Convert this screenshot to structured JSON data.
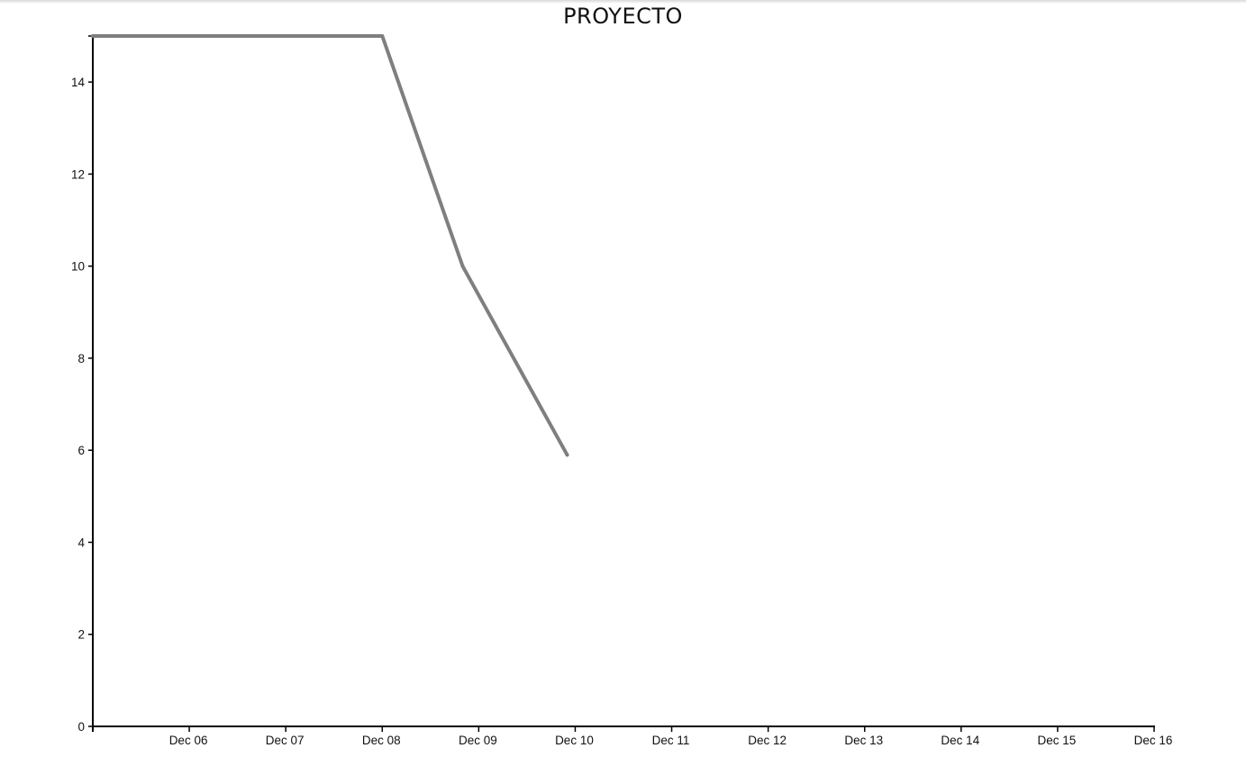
{
  "chart_data": {
    "type": "line",
    "title": "PROYECTO",
    "xlabel": "",
    "ylabel": "",
    "x_tick_labels": [
      "Dec 06",
      "Dec 07",
      "Dec 08",
      "Dec 09",
      "Dec 10",
      "Dec 11",
      "Dec 12",
      "Dec 13",
      "Dec 14",
      "Dec 15",
      "Dec 16"
    ],
    "y_ticks": [
      0,
      2,
      4,
      6,
      8,
      10,
      12,
      14
    ],
    "xlim": [
      "Dec 05",
      "Dec 16"
    ],
    "ylim": [
      0,
      15
    ],
    "grid": false,
    "series": [
      {
        "color": "#7f7f7f",
        "points": [
          {
            "x": "Dec 05",
            "y": 15
          },
          {
            "x": "Dec 08",
            "y": 15
          },
          {
            "x": "Dec 08 20:00",
            "y": 10
          },
          {
            "x": "Dec 09 22:00",
            "y": 5.9
          }
        ]
      }
    ]
  }
}
